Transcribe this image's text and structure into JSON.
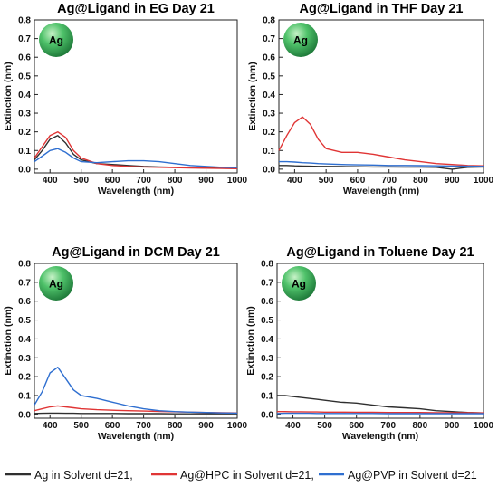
{
  "colors": {
    "ag": "#2f2f2f",
    "hpc": "#e03535",
    "pvp": "#2f6fd0",
    "sphere": "#2fa354"
  },
  "legend": [
    {
      "label": "Ag in Solvent d=21,",
      "color": "#2f2f2f"
    },
    {
      "label": "Ag@HPC in Solvent d=21,",
      "color": "#e03535"
    },
    {
      "label": "Ag@PVP in Solvent d=21",
      "color": "#2f6fd0"
    }
  ],
  "chart_data": [
    {
      "type": "line",
      "title": "Ag@Ligand in EG Day 21",
      "xlabel": "Wavelength (nm)",
      "ylabel": "Extinction (nm)",
      "xlim": [
        350,
        1000
      ],
      "ylim": [
        -0.02,
        0.8
      ],
      "xticks": [
        "400",
        "500",
        "600",
        "700",
        "800",
        "900",
        "1000"
      ],
      "yticks": [
        "0.0",
        "0.1",
        "0.2",
        "0.3",
        "0.4",
        "0.5",
        "0.6",
        "0.7",
        "0.8"
      ],
      "badge": "Ag",
      "x": [
        350,
        375,
        400,
        425,
        450,
        475,
        500,
        550,
        600,
        650,
        700,
        750,
        800,
        850,
        900,
        950,
        1000
      ],
      "series": [
        {
          "name": "Ag in Solvent d=21,",
          "values": [
            0.05,
            0.1,
            0.16,
            0.18,
            0.14,
            0.08,
            0.05,
            0.03,
            0.025,
            0.02,
            0.015,
            0.012,
            0.01,
            0.008,
            0.006,
            0.005,
            0.004
          ]
        },
        {
          "name": "Ag@HPC in Solvent d=21,",
          "values": [
            0.06,
            0.12,
            0.18,
            0.2,
            0.17,
            0.1,
            0.06,
            0.03,
            0.02,
            0.015,
            0.012,
            0.01,
            0.008,
            0.006,
            0.005,
            0.004,
            0.003
          ]
        },
        {
          "name": "Ag@PVP in Solvent d=21",
          "values": [
            0.04,
            0.07,
            0.1,
            0.11,
            0.09,
            0.06,
            0.04,
            0.035,
            0.04,
            0.045,
            0.045,
            0.04,
            0.03,
            0.02,
            0.015,
            0.01,
            0.008
          ]
        }
      ]
    },
    {
      "type": "line",
      "title": "Ag@Ligand in THF Day 21",
      "xlabel": "Wavelength (nm)",
      "ylabel": "Extinction (nm)",
      "xlim": [
        350,
        1000
      ],
      "ylim": [
        -0.02,
        0.8
      ],
      "xticks": [
        "400",
        "500",
        "600",
        "700",
        "800",
        "900",
        "1000"
      ],
      "yticks": [
        "0.0",
        "0.1",
        "0.2",
        "0.3",
        "0.4",
        "0.5",
        "0.6",
        "0.7",
        "0.8"
      ],
      "badge": "Ag",
      "x": [
        350,
        375,
        400,
        425,
        450,
        475,
        500,
        550,
        600,
        650,
        700,
        750,
        800,
        850,
        900,
        950,
        1000
      ],
      "series": [
        {
          "name": "Ag in Solvent d=21,",
          "values": [
            0.02,
            0.02,
            0.018,
            0.017,
            0.016,
            0.015,
            0.015,
            0.014,
            0.013,
            0.012,
            0.012,
            0.011,
            0.011,
            0.01,
            0.0,
            0.01,
            0.012
          ]
        },
        {
          "name": "Ag@HPC in Solvent d=21,",
          "values": [
            0.1,
            0.18,
            0.25,
            0.28,
            0.24,
            0.16,
            0.11,
            0.09,
            0.09,
            0.08,
            0.065,
            0.05,
            0.04,
            0.03,
            0.025,
            0.02,
            0.018
          ]
        },
        {
          "name": "Ag@PVP in Solvent d=21",
          "values": [
            0.04,
            0.04,
            0.038,
            0.035,
            0.033,
            0.03,
            0.028,
            0.025,
            0.023,
            0.022,
            0.02,
            0.02,
            0.019,
            0.018,
            0.017,
            0.016,
            0.015
          ]
        }
      ]
    },
    {
      "type": "line",
      "title": "Ag@Ligand in DCM Day 21",
      "xlabel": "Wavelength (nm)",
      "ylabel": "Extinction (nm)",
      "xlim": [
        350,
        1000
      ],
      "ylim": [
        -0.02,
        0.8
      ],
      "xticks": [
        "400",
        "500",
        "600",
        "700",
        "800",
        "900",
        "1000"
      ],
      "yticks": [
        "0.0",
        "0.1",
        "0.2",
        "0.3",
        "0.4",
        "0.5",
        "0.6",
        "0.7",
        "0.8"
      ],
      "badge": "Ag",
      "x": [
        350,
        375,
        400,
        425,
        450,
        475,
        500,
        550,
        600,
        650,
        700,
        750,
        800,
        850,
        900,
        950,
        1000
      ],
      "series": [
        {
          "name": "Ag in Solvent d=21,",
          "values": [
            0.005,
            0.006,
            0.007,
            0.007,
            0.006,
            0.006,
            0.005,
            0.005,
            0.005,
            0.004,
            0.004,
            0.004,
            0.003,
            0.003,
            0.003,
            0.003,
            0.003
          ]
        },
        {
          "name": "Ag@HPC in Solvent d=21,",
          "values": [
            0.02,
            0.03,
            0.04,
            0.045,
            0.04,
            0.035,
            0.03,
            0.025,
            0.022,
            0.02,
            0.018,
            0.016,
            0.014,
            0.012,
            0.01,
            0.009,
            0.008
          ]
        },
        {
          "name": "Ag@PVP in Solvent d=21",
          "values": [
            0.05,
            0.12,
            0.22,
            0.25,
            0.19,
            0.13,
            0.1,
            0.085,
            0.065,
            0.045,
            0.03,
            0.02,
            0.015,
            0.012,
            0.01,
            0.008,
            0.007
          ]
        }
      ]
    },
    {
      "type": "line",
      "title": "Ag@Ligand in Toluene Day 21",
      "xlabel": "Wavelength (nm)",
      "ylabel": "Extinction (nm)",
      "xlim": [
        350,
        1000
      ],
      "ylim": [
        -0.02,
        0.8
      ],
      "xticks": [
        "400",
        "500",
        "600",
        "700",
        "800",
        "900",
        "1000"
      ],
      "yticks": [
        "0.0",
        "0.1",
        "0.2",
        "0.3",
        "0.4",
        "0.5",
        "0.6",
        "0.7",
        "0.8"
      ],
      "badge": "Ag",
      "x": [
        350,
        375,
        400,
        425,
        450,
        475,
        500,
        550,
        600,
        650,
        700,
        750,
        800,
        850,
        900,
        950,
        1000
      ],
      "series": [
        {
          "name": "Ag in Solvent d=21,",
          "values": [
            0.1,
            0.1,
            0.095,
            0.09,
            0.085,
            0.08,
            0.075,
            0.065,
            0.06,
            0.05,
            0.04,
            0.035,
            0.03,
            0.02,
            0.015,
            0.01,
            0.008
          ]
        },
        {
          "name": "Ag@HPC in Solvent d=21,",
          "values": [
            0.015,
            0.015,
            0.014,
            0.014,
            0.013,
            0.013,
            0.012,
            0.012,
            0.011,
            0.011,
            0.01,
            0.01,
            0.01,
            0.009,
            0.009,
            0.009,
            0.008
          ]
        },
        {
          "name": "Ag@PVP in Solvent d=21",
          "values": [
            0.005,
            0.006,
            0.006,
            0.006,
            0.006,
            0.005,
            0.005,
            0.005,
            0.005,
            0.005,
            0.004,
            0.004,
            0.004,
            0.004,
            0.004,
            0.004,
            0.004
          ]
        }
      ]
    }
  ]
}
